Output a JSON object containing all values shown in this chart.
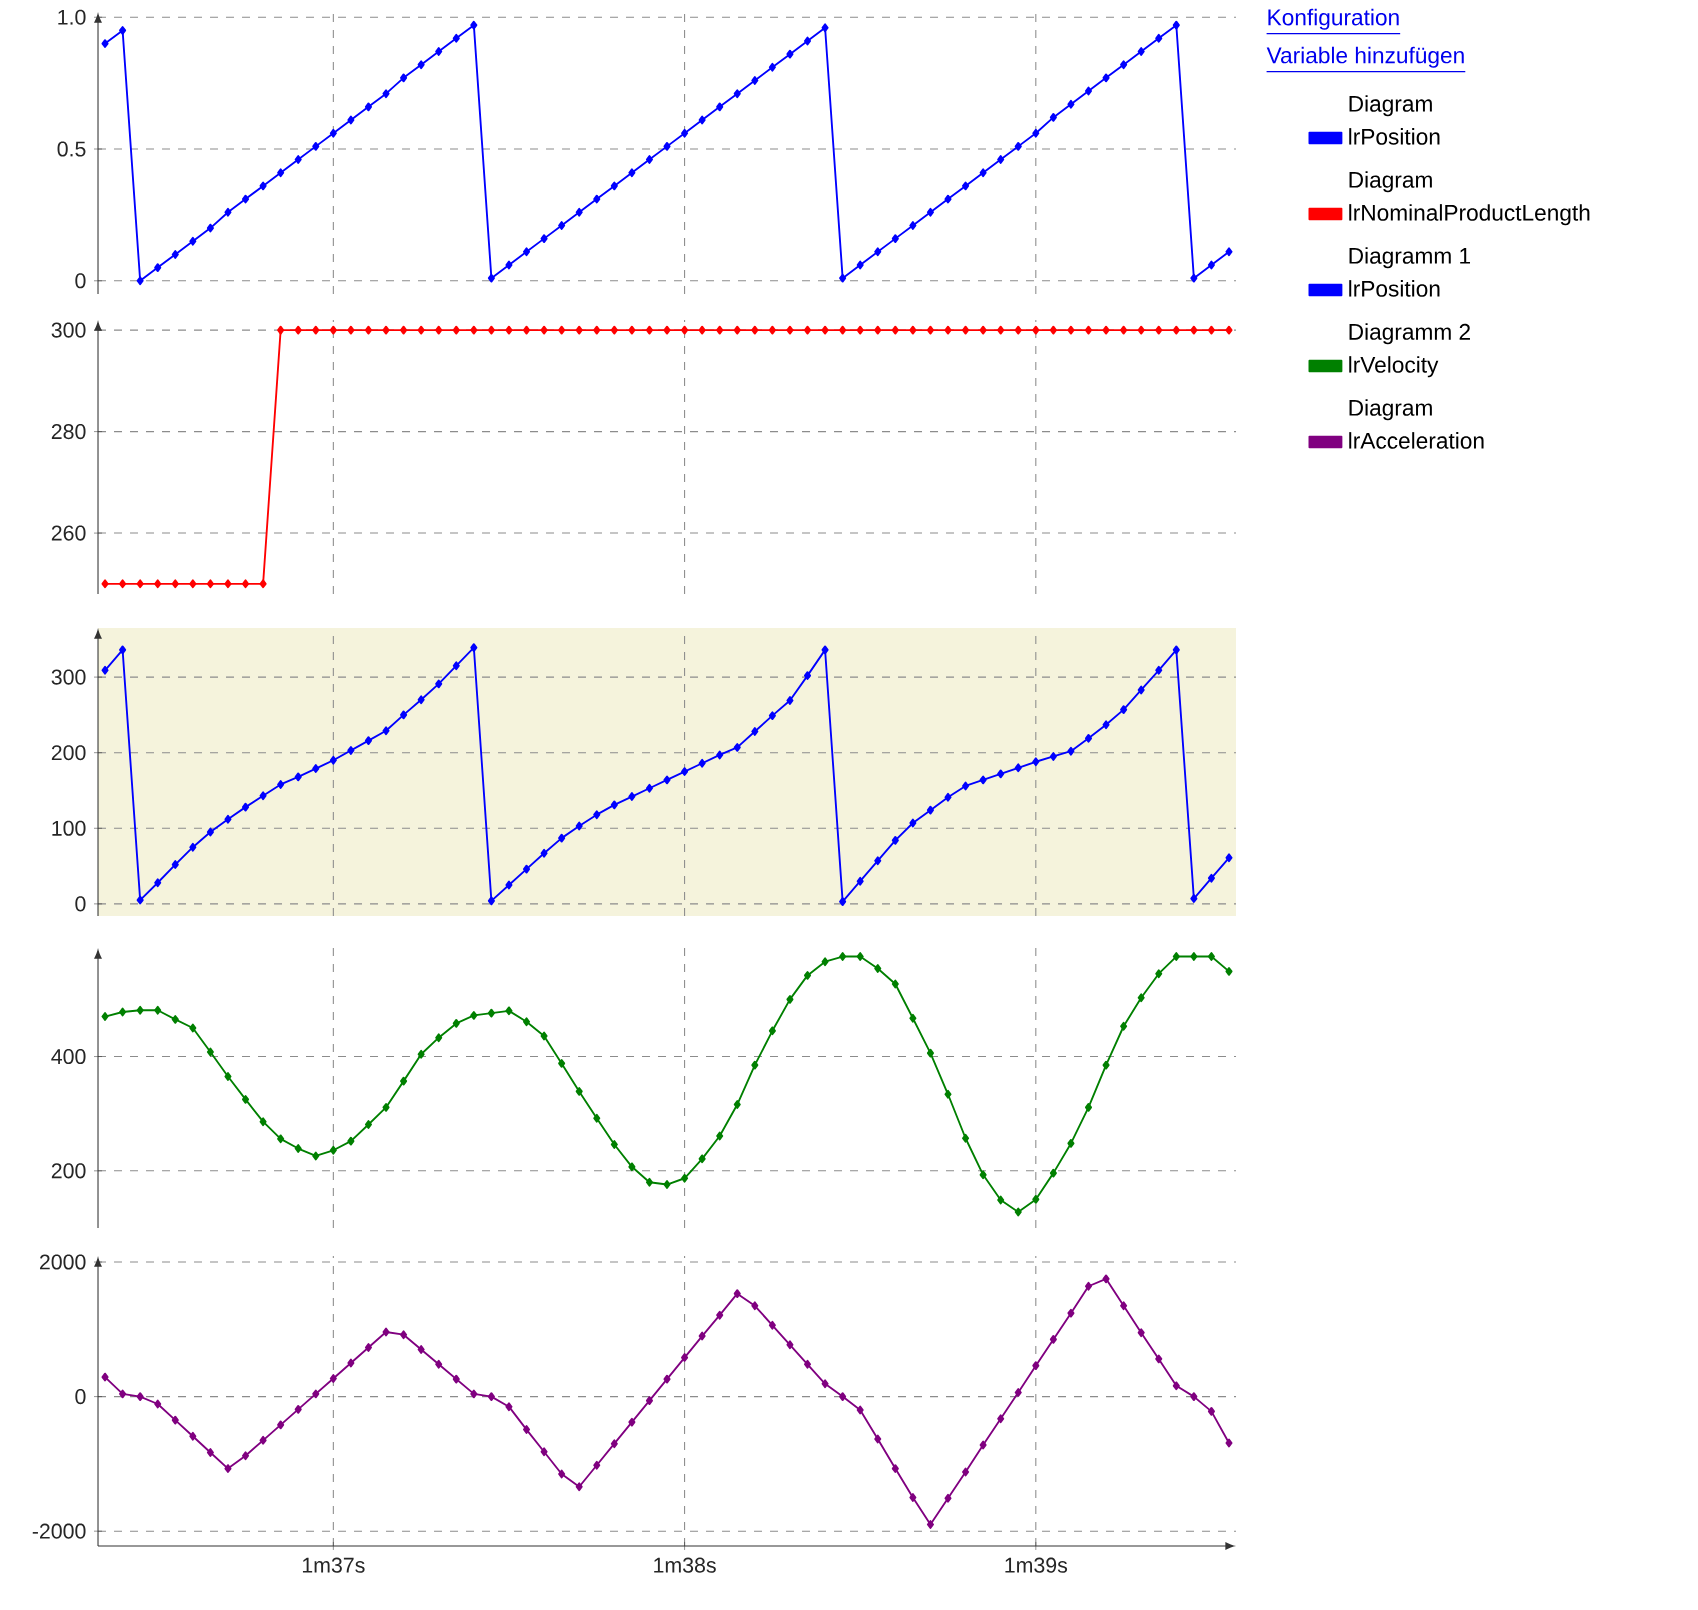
{
  "chart_data": [
    {
      "type": "line",
      "legend_title": "Diagram",
      "legend": "right",
      "grid": true,
      "marker": "diamond",
      "line_style": "solid",
      "tick_labels": "y",
      "annotations": [
        "Konfiguration",
        "Variable hinzufügen"
      ],
      "categories": [
        null,
        null,
        null,
        null,
        null,
        null,
        null,
        null,
        null,
        null,
        null,
        null,
        null,
        null,
        null,
        null,
        null,
        null,
        null,
        null,
        null,
        null,
        null,
        null,
        null,
        null,
        null,
        null,
        null,
        null,
        null,
        null,
        null,
        null,
        null,
        null,
        null,
        null,
        null,
        null,
        null,
        null,
        null,
        null,
        null,
        null,
        null,
        null,
        null,
        null,
        null,
        null,
        null,
        null,
        null,
        null,
        null,
        null,
        null,
        null,
        null,
        null,
        null,
        null,
        null
      ],
      "ylim": [
        -0.05,
        1.02
      ],
      "yticks": [
        0,
        0.5,
        {
          "value": 1,
          "label": "1.0"
        }
      ],
      "series": [
        {
          "name": "lrPosition",
          "color": "#0000ff",
          "values": [
            0.9,
            0.95,
            0,
            0.05,
            0.1,
            0.15,
            0.2,
            0.26,
            0.31,
            0.36,
            0.41,
            0.46,
            0.51,
            0.56,
            0.61,
            0.66,
            0.71,
            0.77,
            0.82,
            0.87,
            0.92,
            0.97,
            0.01,
            0.06,
            0.11,
            0.16,
            0.21,
            0.26,
            0.31,
            0.36,
            0.41,
            0.46,
            0.51,
            0.56,
            0.61,
            0.66,
            0.71,
            0.76,
            0.81,
            0.86,
            0.91,
            0.96,
            0.01,
            0.06,
            0.11,
            0.16,
            0.21,
            0.26,
            0.31,
            0.36,
            0.41,
            0.46,
            0.51,
            0.56,
            0.62,
            0.67,
            0.72,
            0.77,
            0.82,
            0.87,
            0.92,
            0.97,
            0.01,
            0.06,
            0.11
          ]
        }
      ]
    },
    {
      "type": "line",
      "legend_title": "Diagram",
      "legend": "right",
      "grid": true,
      "marker": "diamond",
      "line_style": "solid",
      "tick_labels": "y",
      "categories": [
        null,
        null,
        null,
        null,
        null,
        null,
        null,
        null,
        null,
        null,
        null,
        null,
        null,
        null,
        null,
        null,
        null,
        null,
        null,
        null,
        null,
        null,
        null,
        null,
        null,
        null,
        null,
        null,
        null,
        null,
        null,
        null,
        null,
        null,
        null,
        null,
        null,
        null,
        null,
        null,
        null,
        null,
        null,
        null,
        null,
        null,
        null,
        null,
        null,
        null,
        null,
        null,
        null,
        null,
        null,
        null,
        null,
        null,
        null,
        null,
        null,
        null,
        null,
        null,
        null
      ],
      "ylim": [
        248,
        302
      ],
      "yticks": [
        260,
        280,
        300
      ],
      "series": [
        {
          "name": "lrNominalProductLength",
          "color": "#ff0000",
          "values": [
            250,
            250,
            250,
            250,
            250,
            250,
            250,
            250,
            250,
            250,
            300,
            300,
            300,
            300,
            300,
            300,
            300,
            300,
            300,
            300,
            300,
            300,
            300,
            300,
            300,
            300,
            300,
            300,
            300,
            300,
            300,
            300,
            300,
            300,
            300,
            300,
            300,
            300,
            300,
            300,
            300,
            300,
            300,
            300,
            300,
            300,
            300,
            300,
            300,
            300,
            300,
            300,
            300,
            300,
            300,
            300,
            300,
            300,
            300,
            300,
            300,
            300,
            300,
            300,
            300
          ]
        }
      ]
    },
    {
      "type": "line",
      "legend_title": "Diagramm 1",
      "legend": "right",
      "grid": true,
      "marker": "diamond",
      "line_style": "solid",
      "tick_labels": "y",
      "categories": [
        null,
        null,
        null,
        null,
        null,
        null,
        null,
        null,
        null,
        null,
        null,
        null,
        null,
        null,
        null,
        null,
        null,
        null,
        null,
        null,
        null,
        null,
        null,
        null,
        null,
        null,
        null,
        null,
        null,
        null,
        null,
        null,
        null,
        null,
        null,
        null,
        null,
        null,
        null,
        null,
        null,
        null,
        null,
        null,
        null,
        null,
        null,
        null,
        null,
        null,
        null,
        null,
        null,
        null,
        null,
        null,
        null,
        null,
        null,
        null,
        null,
        null,
        null,
        null,
        null
      ],
      "ylim": [
        -16,
        365
      ],
      "yticks": [
        0,
        100,
        200,
        300
      ],
      "series": [
        {
          "name": "lrPosition",
          "color": "#0000ff",
          "values": [
            309,
            336,
            5,
            28,
            52,
            75,
            95,
            112,
            128,
            143,
            158,
            168,
            179,
            190,
            203,
            216,
            229,
            250,
            270,
            291,
            315,
            339,
            4,
            25,
            46,
            67,
            87,
            103,
            118,
            131,
            142,
            153,
            164,
            175,
            186,
            197,
            207,
            228,
            249,
            269,
            302,
            336,
            3,
            30,
            57,
            84,
            107,
            124,
            141,
            156,
            164,
            172,
            180,
            188,
            195,
            202,
            219,
            237,
            257,
            283,
            309,
            336,
            7,
            34,
            61
          ]
        }
      ]
    },
    {
      "type": "line",
      "legend_title": "Diagramm 2",
      "legend": "right",
      "grid": true,
      "marker": "diamond",
      "line_style": "solid",
      "tick_labels": "y",
      "categories": [
        null,
        null,
        null,
        null,
        null,
        null,
        null,
        null,
        null,
        null,
        null,
        null,
        null,
        null,
        null,
        null,
        null,
        null,
        null,
        null,
        null,
        null,
        null,
        null,
        null,
        null,
        null,
        null,
        null,
        null,
        null,
        null,
        null,
        null,
        null,
        null,
        null,
        null,
        null,
        null,
        null,
        null,
        null,
        null,
        null,
        null,
        null,
        null,
        null,
        null,
        null,
        null,
        null,
        null,
        null,
        null,
        null,
        null,
        null,
        null,
        null,
        null,
        null,
        null,
        null
      ],
      "ylim": [
        100,
        590
      ],
      "yticks": [
        200,
        400
      ],
      "series": [
        {
          "name": "lrVelocity",
          "color": "#008000",
          "values": [
            470,
            478,
            481,
            481,
            465,
            450,
            408,
            365,
            325,
            286,
            256,
            239,
            226,
            236,
            252,
            281,
            311,
            357,
            404,
            433,
            458,
            472,
            476,
            480,
            461,
            436,
            388,
            339,
            292,
            246,
            207,
            180,
            176,
            187,
            221,
            261,
            316,
            385,
            445,
            500,
            542,
            566,
            575,
            575,
            554,
            527,
            467,
            406,
            334,
            257,
            193,
            149,
            128,
            150,
            196,
            248,
            311,
            385,
            453,
            503,
            545,
            575,
            575,
            575,
            549
          ]
        }
      ]
    },
    {
      "type": "line",
      "legend_title": "Diagram",
      "legend": "right",
      "grid": true,
      "marker": "diamond",
      "line_style": "solid",
      "categories": [
        null,
        null,
        null,
        null,
        null,
        null,
        null,
        null,
        null,
        null,
        null,
        null,
        null,
        "1m37s",
        null,
        null,
        null,
        null,
        null,
        null,
        null,
        null,
        null,
        null,
        null,
        null,
        null,
        null,
        null,
        null,
        null,
        null,
        null,
        "1m38s",
        null,
        null,
        null,
        null,
        null,
        null,
        null,
        null,
        null,
        null,
        null,
        null,
        null,
        null,
        null,
        null,
        null,
        null,
        null,
        "1m39s",
        null,
        null,
        null,
        null,
        null,
        null,
        null,
        null,
        null,
        null,
        null
      ],
      "ylim": [
        -2220,
        2090
      ],
      "yticks": [
        -2000,
        0,
        2000
      ],
      "series": [
        {
          "name": "lrAcceleration",
          "color": "#800080",
          "values": [
            290,
            40,
            0,
            -110,
            -350,
            -590,
            -830,
            -1070,
            -880,
            -650,
            -420,
            -190,
            40,
            270,
            500,
            730,
            960,
            920,
            700,
            480,
            260,
            40,
            0,
            -150,
            -490,
            -820,
            -1150,
            -1340,
            -1020,
            -700,
            -380,
            -60,
            260,
            580,
            900,
            1210,
            1530,
            1350,
            1060,
            770,
            480,
            190,
            0,
            -200,
            -630,
            -1070,
            -1500,
            -1900,
            -1510,
            -1120,
            -720,
            -330,
            60,
            460,
            850,
            1240,
            1640,
            1750,
            1350,
            950,
            560,
            160,
            0,
            -220,
            -690
          ]
        }
      ]
    }
  ]
}
